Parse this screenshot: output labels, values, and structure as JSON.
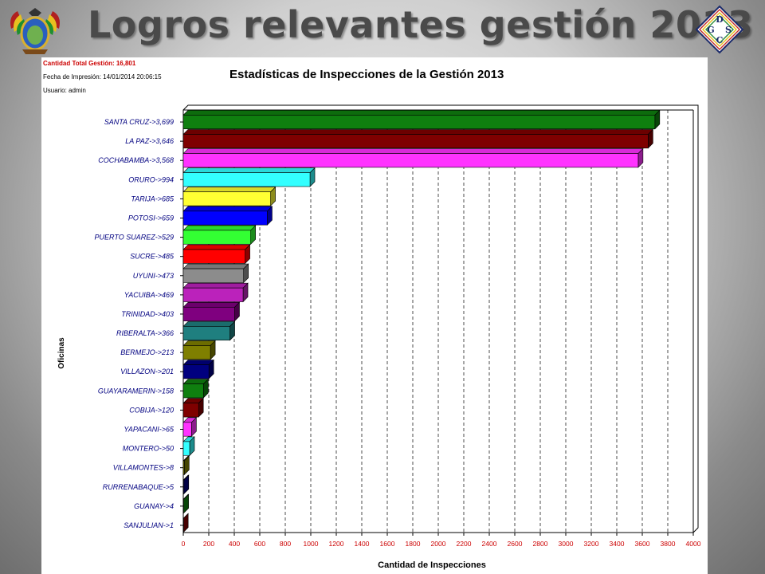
{
  "slide": {
    "title": "Logros relevantes gestión 2013",
    "logo_letters": {
      "top": "D",
      "left": "G",
      "right": "S",
      "bottom": "C"
    }
  },
  "report": {
    "total_label": "Cantidad Total Gestión: 16,801",
    "print_date": "Fecha de Impresión: 14/01/2014 20:06:15",
    "user": "Usuario: admin"
  },
  "chart_data": {
    "type": "bar",
    "orientation": "horizontal",
    "title": "Estadísticas de Inspecciones de la Gestión 2013",
    "xlabel": "Cantidad de Inspecciones",
    "ylabel": "Oficinas",
    "xlim": [
      0,
      4000
    ],
    "xticks": [
      0,
      200,
      400,
      600,
      800,
      1000,
      1200,
      1400,
      1600,
      1800,
      2000,
      2200,
      2400,
      2600,
      2800,
      3000,
      3200,
      3400,
      3600,
      3800,
      4000
    ],
    "grid": "vertical dashed",
    "categories": [
      "SANTA CRUZ->3,699",
      "LA PAZ->3,646",
      "COCHABAMBA->3,568",
      "ORURO->994",
      "TARIJA->685",
      "POTOSI->659",
      "PUERTO SUAREZ->529",
      "SUCRE->485",
      "UYUNI->473",
      "YACUIBA->469",
      "TRINIDAD->403",
      "RIBERALTA->366",
      "BERMEJO->213",
      "VILLAZON->201",
      "GUAYARAMERIN->158",
      "COBIJA->120",
      "YAPACANI->65",
      "MONTERO->50",
      "VILLAMONTES->8",
      "RURRENABAQUE->5",
      "GUANAY->4",
      "SANJULIAN->1"
    ],
    "values": [
      3699,
      3646,
      3568,
      994,
      685,
      659,
      529,
      485,
      473,
      469,
      403,
      366,
      213,
      201,
      158,
      120,
      65,
      50,
      8,
      5,
      4,
      1
    ],
    "colors": [
      "#0f7f0f",
      "#7f0000",
      "#ff33ff",
      "#33ffff",
      "#ffff33",
      "#0000ff",
      "#33ff33",
      "#ff0000",
      "#8c8c8c",
      "#bb22bb",
      "#7f007f",
      "#1f7f7f",
      "#7f7f00",
      "#00007f",
      "#0f7f0f",
      "#7f0000",
      "#ff33ff",
      "#33ffff",
      "#7f7f00",
      "#00007f",
      "#0f7f0f",
      "#7f0000"
    ]
  }
}
